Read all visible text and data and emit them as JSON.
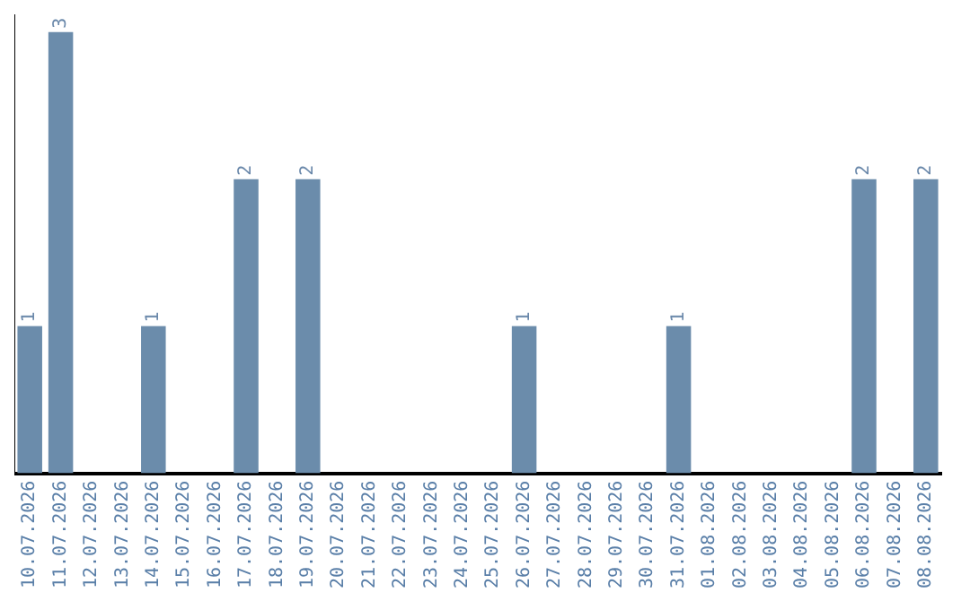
{
  "chart_data": {
    "type": "bar",
    "categories": [
      "10.07.2026",
      "11.07.2026",
      "12.07.2026",
      "13.07.2026",
      "14.07.2026",
      "15.07.2026",
      "16.07.2026",
      "17.07.2026",
      "18.07.2026",
      "19.07.2026",
      "20.07.2026",
      "21.07.2026",
      "22.07.2026",
      "23.07.2026",
      "24.07.2026",
      "25.07.2026",
      "26.07.2026",
      "27.07.2026",
      "28.07.2026",
      "29.07.2026",
      "30.07.2026",
      "31.07.2026",
      "01.08.2026",
      "02.08.2026",
      "03.08.2026",
      "04.08.2026",
      "05.08.2026",
      "06.08.2026",
      "07.08.2026",
      "08.08.2026"
    ],
    "values": [
      1,
      3,
      null,
      null,
      1,
      null,
      null,
      2,
      null,
      2,
      null,
      null,
      null,
      null,
      null,
      null,
      1,
      null,
      null,
      null,
      null,
      1,
      null,
      null,
      null,
      null,
      null,
      2,
      null,
      2
    ],
    "color": "#6b8cab",
    "data_labels": true,
    "tick_labels": "x",
    "grid": false,
    "legend": false
  }
}
